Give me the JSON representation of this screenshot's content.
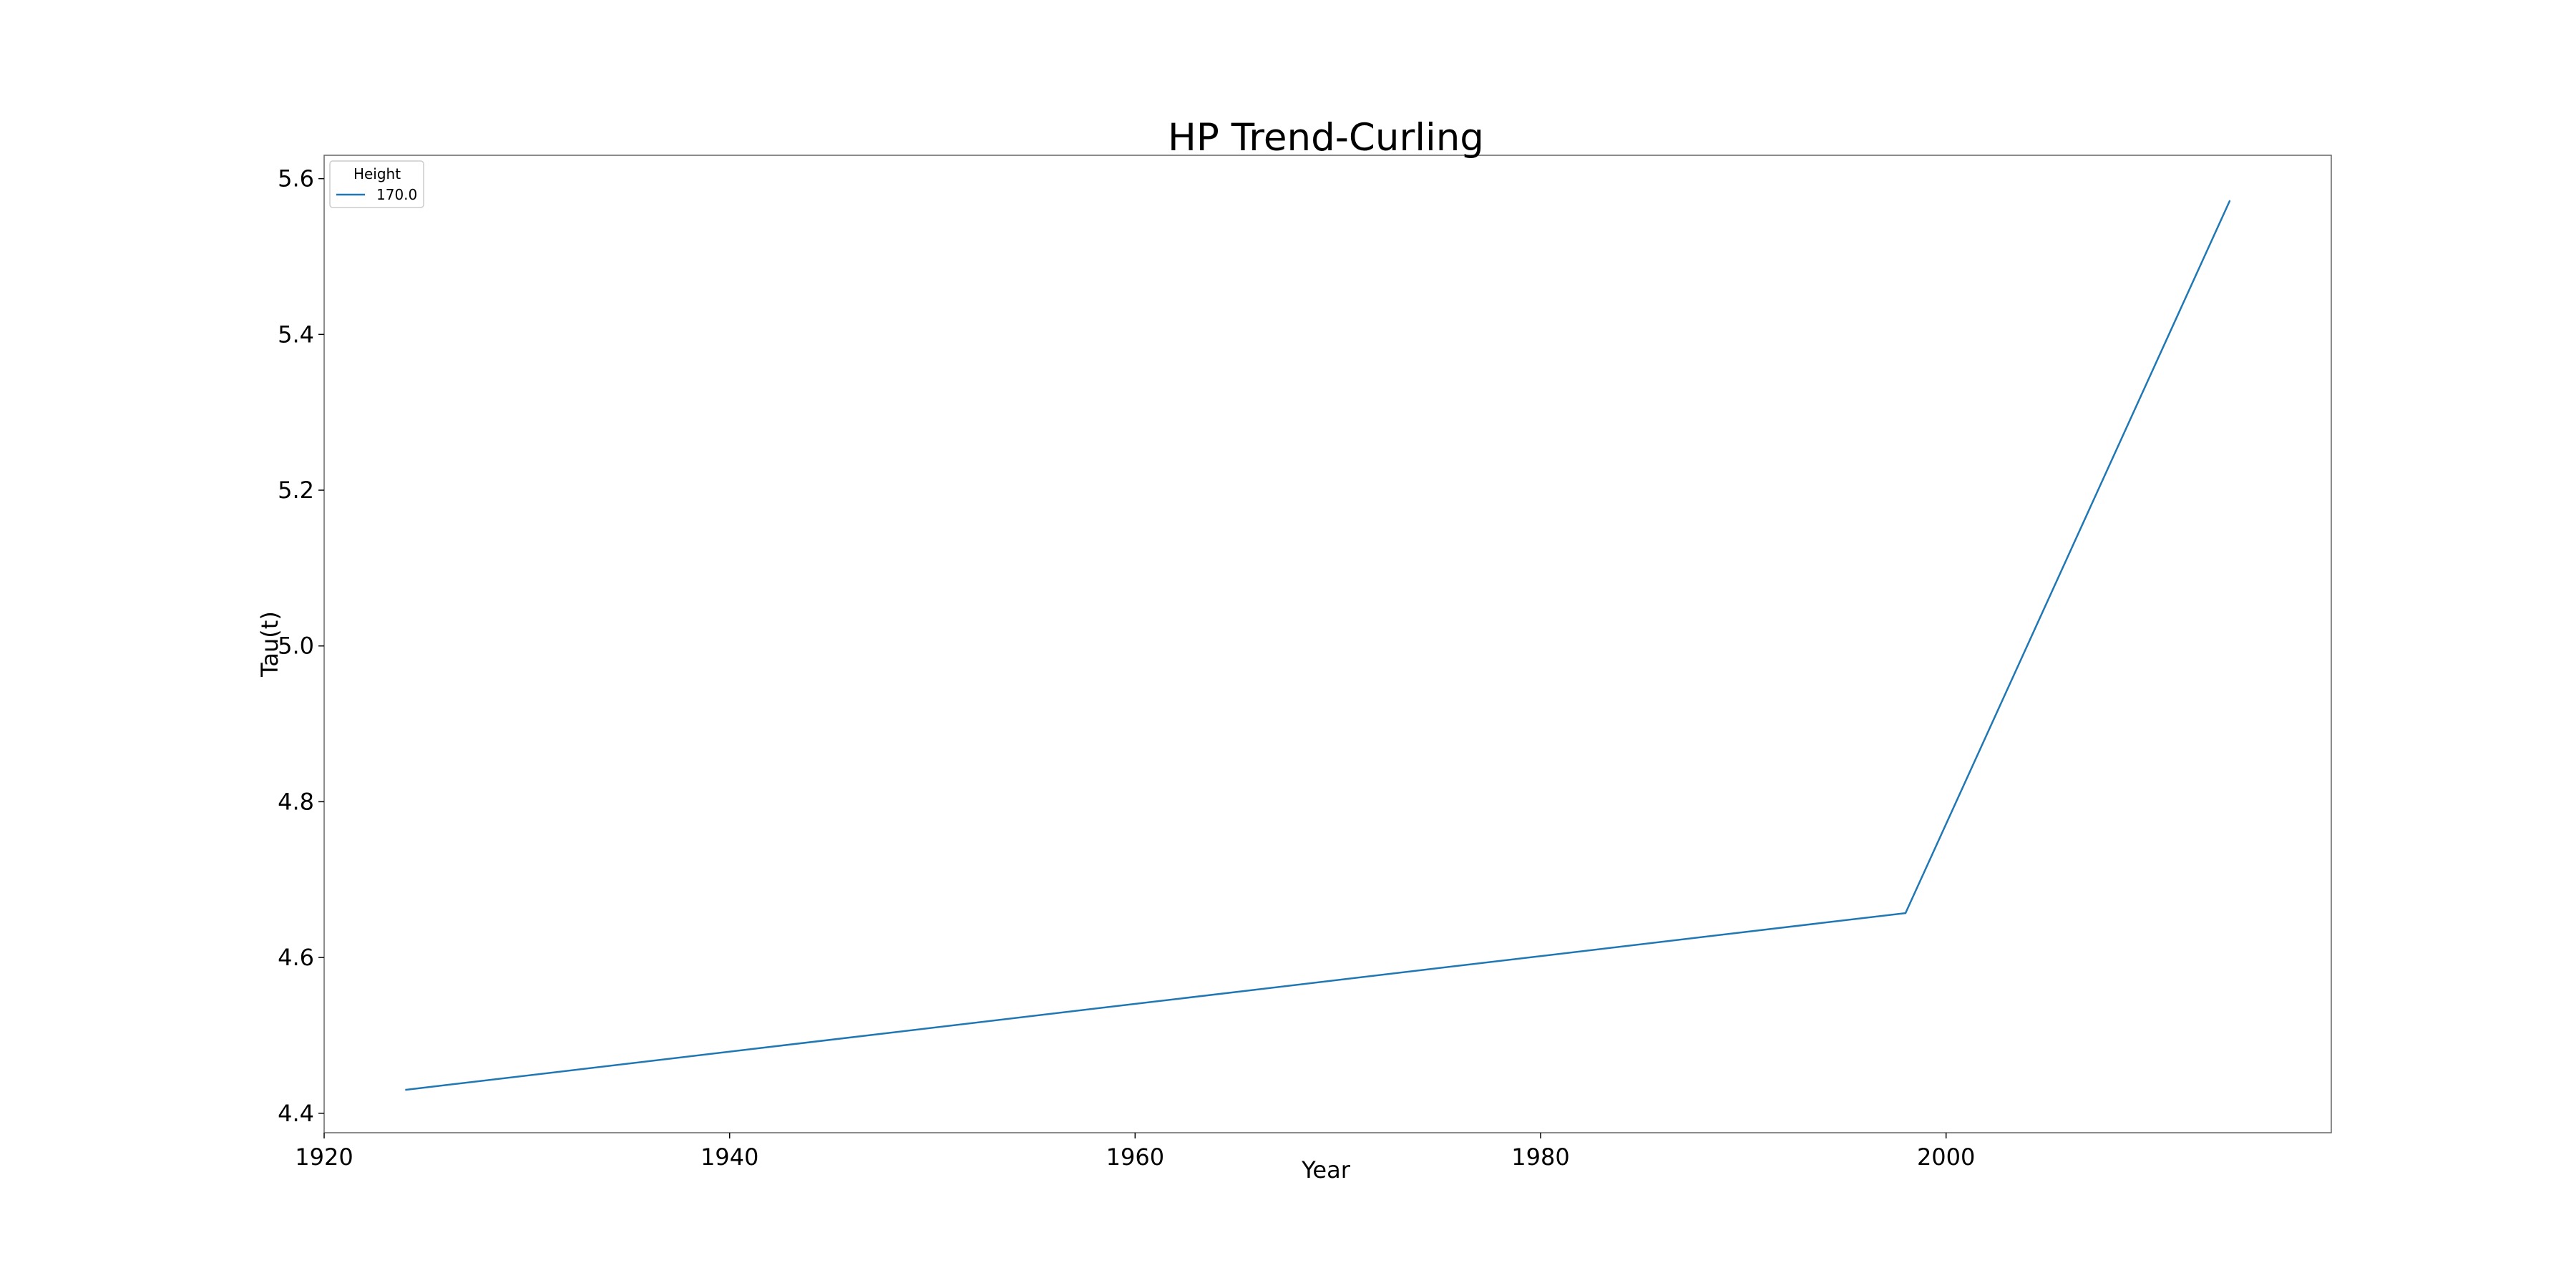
{
  "chart_data": {
    "type": "line",
    "title": "HP Trend-Curling",
    "xlabel": "Year",
    "ylabel": "Tau(t)",
    "xlim": [
      1920,
      2019
    ],
    "ylim": [
      4.375,
      5.63
    ],
    "xticks": [
      1920,
      1940,
      1960,
      1980,
      2000
    ],
    "yticks": [
      4.4,
      4.6,
      4.8,
      5.0,
      5.2,
      5.4,
      5.6
    ],
    "grid": false,
    "legend": {
      "title": "Height",
      "placement": "top-left"
    },
    "series": [
      {
        "name": "170.0",
        "color": "#1f77b4",
        "x": [
          1924,
          1998,
          2014
        ],
        "y": [
          4.43,
          4.657,
          5.572
        ]
      }
    ]
  }
}
